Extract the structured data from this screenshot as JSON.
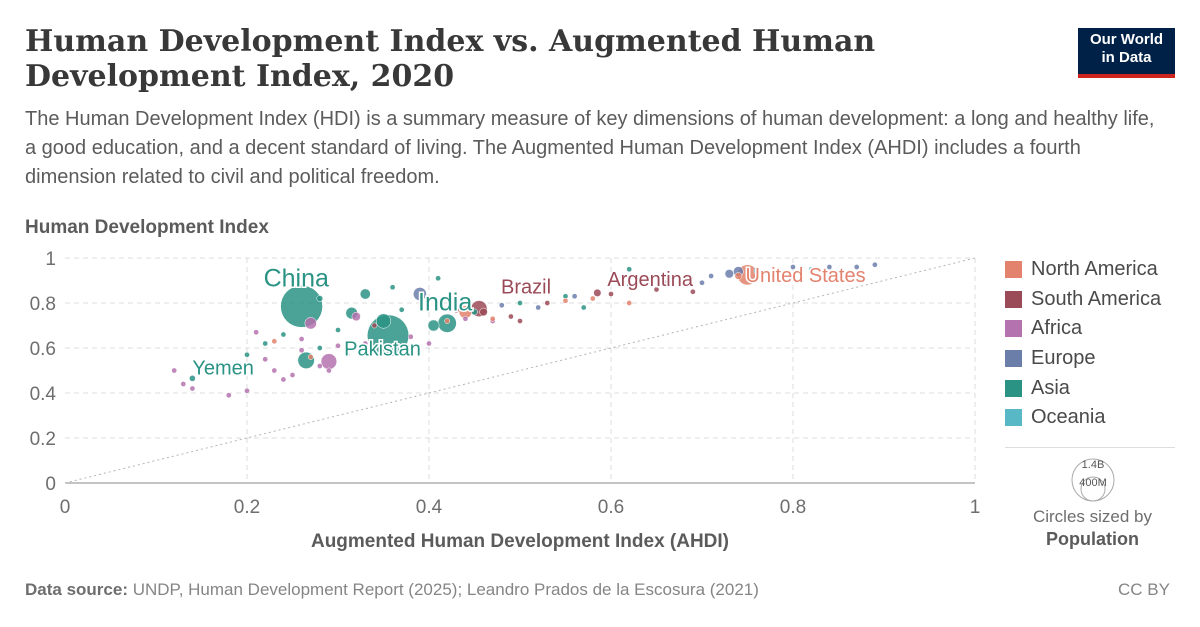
{
  "header": {
    "title": "Human Development Index vs. Augmented Human Development Index, 2020",
    "subtitle": "The Human Development Index (HDI) is a summary measure of key dimensions of human development: a long and healthy life, a good education, and a decent standard of living. The Augmented Human Development Index (AHDI) includes a fourth dimension related to civil and political freedom.",
    "logo_line1": "Our World",
    "logo_line2": "in Data"
  },
  "legend": {
    "items": [
      {
        "label": "North America",
        "color": "#e3826d"
      },
      {
        "label": "South America",
        "color": "#9b4a57"
      },
      {
        "label": "Africa",
        "color": "#b472ae"
      },
      {
        "label": "Europe",
        "color": "#6b7eaa"
      },
      {
        "label": "Asia",
        "color": "#2a9384"
      },
      {
        "label": "Oceania",
        "color": "#58b8c5"
      }
    ],
    "size_max_label": "1.4B",
    "size_min_label": "400M",
    "size_caption": "Circles sized by",
    "size_variable": "Population"
  },
  "footer": {
    "source_label": "Data source:",
    "source_text": "UNDP, Human Development Report (2025); Leandro Prados de la Escosura (2021)",
    "license": "CC BY"
  },
  "chart_data": {
    "type": "scatter",
    "title": "Human Development Index vs. Augmented Human Development Index, 2020",
    "xlabel": "Augmented Human Development Index (AHDI)",
    "ylabel": "Human Development Index",
    "xlim": [
      0,
      1
    ],
    "ylim": [
      0,
      1
    ],
    "xticks": [
      0,
      0.2,
      0.4,
      0.6,
      0.8,
      1
    ],
    "yticks": [
      0,
      0.2,
      0.4,
      0.6,
      0.8,
      1
    ],
    "xtick_labels": [
      "0",
      "0.2",
      "0.4",
      "0.6",
      "0.8",
      "1"
    ],
    "ytick_labels": [
      "0",
      "0.2",
      "0.4",
      "0.6",
      "0.8",
      "1"
    ],
    "grid": true,
    "reference_line": "x = y (dotted diagonal)",
    "legend_position": "right",
    "size_variable": "Population",
    "labeled_points": [
      {
        "label": "China",
        "region": "Asia",
        "x": 0.26,
        "y": 0.785,
        "pop": 1.41
      },
      {
        "label": "India",
        "region": "Asia",
        "x": 0.355,
        "y": 0.655,
        "pop": 1.38
      },
      {
        "label": "Pakistan",
        "region": "Asia",
        "x": 0.265,
        "y": 0.545,
        "pop": 0.22
      },
      {
        "label": "Yemen",
        "region": "Asia",
        "x": 0.14,
        "y": 0.465,
        "pop": 0.03
      },
      {
        "label": "Brazil",
        "region": "South America",
        "x": 0.455,
        "y": 0.775,
        "pop": 0.21
      },
      {
        "label": "Argentina",
        "region": "South America",
        "x": 0.585,
        "y": 0.845,
        "pop": 0.045
      },
      {
        "label": "United States",
        "region": "North America",
        "x": 0.75,
        "y": 0.925,
        "pop": 0.33
      }
    ],
    "points": [
      {
        "region": "Asia",
        "x": 0.42,
        "y": 0.71,
        "pop": 0.27
      },
      {
        "region": "Asia",
        "x": 0.315,
        "y": 0.755,
        "pop": 0.11
      },
      {
        "region": "Asia",
        "x": 0.405,
        "y": 0.7,
        "pop": 0.1
      },
      {
        "region": "Asia",
        "x": 0.33,
        "y": 0.84,
        "pop": 0.085
      },
      {
        "region": "Asia",
        "x": 0.35,
        "y": 0.72,
        "pop": 0.17
      },
      {
        "region": "Asia",
        "x": 0.28,
        "y": 0.82,
        "pop": 0.03
      },
      {
        "region": "Asia",
        "x": 0.41,
        "y": 0.91,
        "pop": 0.01
      },
      {
        "region": "Asia",
        "x": 0.36,
        "y": 0.87,
        "pop": 0.01
      },
      {
        "region": "Asia",
        "x": 0.2,
        "y": 0.57,
        "pop": 0.01
      },
      {
        "region": "Asia",
        "x": 0.22,
        "y": 0.62,
        "pop": 0.01
      },
      {
        "region": "Asia",
        "x": 0.3,
        "y": 0.68,
        "pop": 0.02
      },
      {
        "region": "Asia",
        "x": 0.37,
        "y": 0.77,
        "pop": 0.02
      },
      {
        "region": "Asia",
        "x": 0.45,
        "y": 0.76,
        "pop": 0.03
      },
      {
        "region": "Asia",
        "x": 0.62,
        "y": 0.95,
        "pop": 0.01
      },
      {
        "region": "Asia",
        "x": 0.55,
        "y": 0.83,
        "pop": 0.01
      },
      {
        "region": "Asia",
        "x": 0.57,
        "y": 0.78,
        "pop": 0.01
      },
      {
        "region": "Asia",
        "x": 0.28,
        "y": 0.6,
        "pop": 0.02
      },
      {
        "region": "Asia",
        "x": 0.24,
        "y": 0.66,
        "pop": 0.01
      },
      {
        "region": "Asia",
        "x": 0.5,
        "y": 0.8,
        "pop": 0.01
      },
      {
        "region": "Africa",
        "x": 0.32,
        "y": 0.74,
        "pop": 0.06
      },
      {
        "region": "Africa",
        "x": 0.29,
        "y": 0.54,
        "pop": 0.2
      },
      {
        "region": "Africa",
        "x": 0.27,
        "y": 0.71,
        "pop": 0.11
      },
      {
        "region": "Africa",
        "x": 0.12,
        "y": 0.5,
        "pop": 0.01
      },
      {
        "region": "Africa",
        "x": 0.13,
        "y": 0.44,
        "pop": 0.01
      },
      {
        "region": "Africa",
        "x": 0.14,
        "y": 0.42,
        "pop": 0.01
      },
      {
        "region": "Africa",
        "x": 0.18,
        "y": 0.39,
        "pop": 0.01
      },
      {
        "region": "Africa",
        "x": 0.2,
        "y": 0.41,
        "pop": 0.01
      },
      {
        "region": "Africa",
        "x": 0.21,
        "y": 0.67,
        "pop": 0.01
      },
      {
        "region": "Africa",
        "x": 0.22,
        "y": 0.55,
        "pop": 0.02
      },
      {
        "region": "Africa",
        "x": 0.23,
        "y": 0.5,
        "pop": 0.02
      },
      {
        "region": "Africa",
        "x": 0.24,
        "y": 0.46,
        "pop": 0.02
      },
      {
        "region": "Africa",
        "x": 0.25,
        "y": 0.48,
        "pop": 0.01
      },
      {
        "region": "Africa",
        "x": 0.26,
        "y": 0.59,
        "pop": 0.02
      },
      {
        "region": "Africa",
        "x": 0.28,
        "y": 0.52,
        "pop": 0.02
      },
      {
        "region": "Africa",
        "x": 0.29,
        "y": 0.5,
        "pop": 0.01
      },
      {
        "region": "Africa",
        "x": 0.3,
        "y": 0.61,
        "pop": 0.02
      },
      {
        "region": "Africa",
        "x": 0.31,
        "y": 0.57,
        "pop": 0.02
      },
      {
        "region": "Africa",
        "x": 0.33,
        "y": 0.62,
        "pop": 0.02
      },
      {
        "region": "Africa",
        "x": 0.34,
        "y": 0.6,
        "pop": 0.02
      },
      {
        "region": "Africa",
        "x": 0.38,
        "y": 0.65,
        "pop": 0.01
      },
      {
        "region": "Africa",
        "x": 0.4,
        "y": 0.62,
        "pop": 0.01
      },
      {
        "region": "Africa",
        "x": 0.44,
        "y": 0.73,
        "pop": 0.01
      },
      {
        "region": "Africa",
        "x": 0.47,
        "y": 0.72,
        "pop": 0.01
      },
      {
        "region": "Africa",
        "x": 0.19,
        "y": 0.52,
        "pop": 0.01
      },
      {
        "region": "Africa",
        "x": 0.26,
        "y": 0.64,
        "pop": 0.02
      },
      {
        "region": "Europe",
        "x": 0.39,
        "y": 0.84,
        "pop": 0.14
      },
      {
        "region": "Europe",
        "x": 0.48,
        "y": 0.79,
        "pop": 0.01
      },
      {
        "region": "Europe",
        "x": 0.53,
        "y": 0.85,
        "pop": 0.01
      },
      {
        "region": "Europe",
        "x": 0.56,
        "y": 0.83,
        "pop": 0.01
      },
      {
        "region": "Europe",
        "x": 0.62,
        "y": 0.88,
        "pop": 0.01
      },
      {
        "region": "Europe",
        "x": 0.66,
        "y": 0.89,
        "pop": 0.01
      },
      {
        "region": "Europe",
        "x": 0.68,
        "y": 0.9,
        "pop": 0.01
      },
      {
        "region": "Europe",
        "x": 0.7,
        "y": 0.89,
        "pop": 0.01
      },
      {
        "region": "Europe",
        "x": 0.71,
        "y": 0.92,
        "pop": 0.01
      },
      {
        "region": "Europe",
        "x": 0.73,
        "y": 0.93,
        "pop": 0.06
      },
      {
        "region": "Europe",
        "x": 0.74,
        "y": 0.94,
        "pop": 0.08
      },
      {
        "region": "Europe",
        "x": 0.76,
        "y": 0.95,
        "pop": 0.01
      },
      {
        "region": "Europe",
        "x": 0.8,
        "y": 0.96,
        "pop": 0.01
      },
      {
        "region": "Europe",
        "x": 0.84,
        "y": 0.96,
        "pop": 0.01
      },
      {
        "region": "Europe",
        "x": 0.87,
        "y": 0.96,
        "pop": 0.01
      },
      {
        "region": "Europe",
        "x": 0.89,
        "y": 0.97,
        "pop": 0.01
      },
      {
        "region": "Europe",
        "x": 0.52,
        "y": 0.78,
        "pop": 0.01
      },
      {
        "region": "South America",
        "x": 0.34,
        "y": 0.7,
        "pop": 0.01
      },
      {
        "region": "South America",
        "x": 0.43,
        "y": 0.77,
        "pop": 0.03
      },
      {
        "region": "South America",
        "x": 0.46,
        "y": 0.76,
        "pop": 0.05
      },
      {
        "region": "South America",
        "x": 0.49,
        "y": 0.74,
        "pop": 0.02
      },
      {
        "region": "South America",
        "x": 0.5,
        "y": 0.72,
        "pop": 0.01
      },
      {
        "region": "South America",
        "x": 0.53,
        "y": 0.8,
        "pop": 0.01
      },
      {
        "region": "South America",
        "x": 0.6,
        "y": 0.84,
        "pop": 0.01
      },
      {
        "region": "South America",
        "x": 0.65,
        "y": 0.86,
        "pop": 0.02
      },
      {
        "region": "South America",
        "x": 0.69,
        "y": 0.85,
        "pop": 0.01
      },
      {
        "region": "North America",
        "x": 0.23,
        "y": 0.63,
        "pop": 0.01
      },
      {
        "region": "North America",
        "x": 0.27,
        "y": 0.56,
        "pop": 0.01
      },
      {
        "region": "North America",
        "x": 0.42,
        "y": 0.72,
        "pop": 0.01
      },
      {
        "region": "North America",
        "x": 0.44,
        "y": 0.76,
        "pop": 0.13
      },
      {
        "region": "North America",
        "x": 0.47,
        "y": 0.73,
        "pop": 0.01
      },
      {
        "region": "North America",
        "x": 0.55,
        "y": 0.81,
        "pop": 0.01
      },
      {
        "region": "North America",
        "x": 0.58,
        "y": 0.82,
        "pop": 0.01
      },
      {
        "region": "North America",
        "x": 0.62,
        "y": 0.8,
        "pop": 0.01
      },
      {
        "region": "North America",
        "x": 0.74,
        "y": 0.92,
        "pop": 0.04
      },
      {
        "region": "Oceania",
        "x": 0.76,
        "y": 0.94,
        "pop": 0.01
      },
      {
        "region": "Oceania",
        "x": 0.82,
        "y": 0.95,
        "pop": 0.02
      }
    ]
  }
}
